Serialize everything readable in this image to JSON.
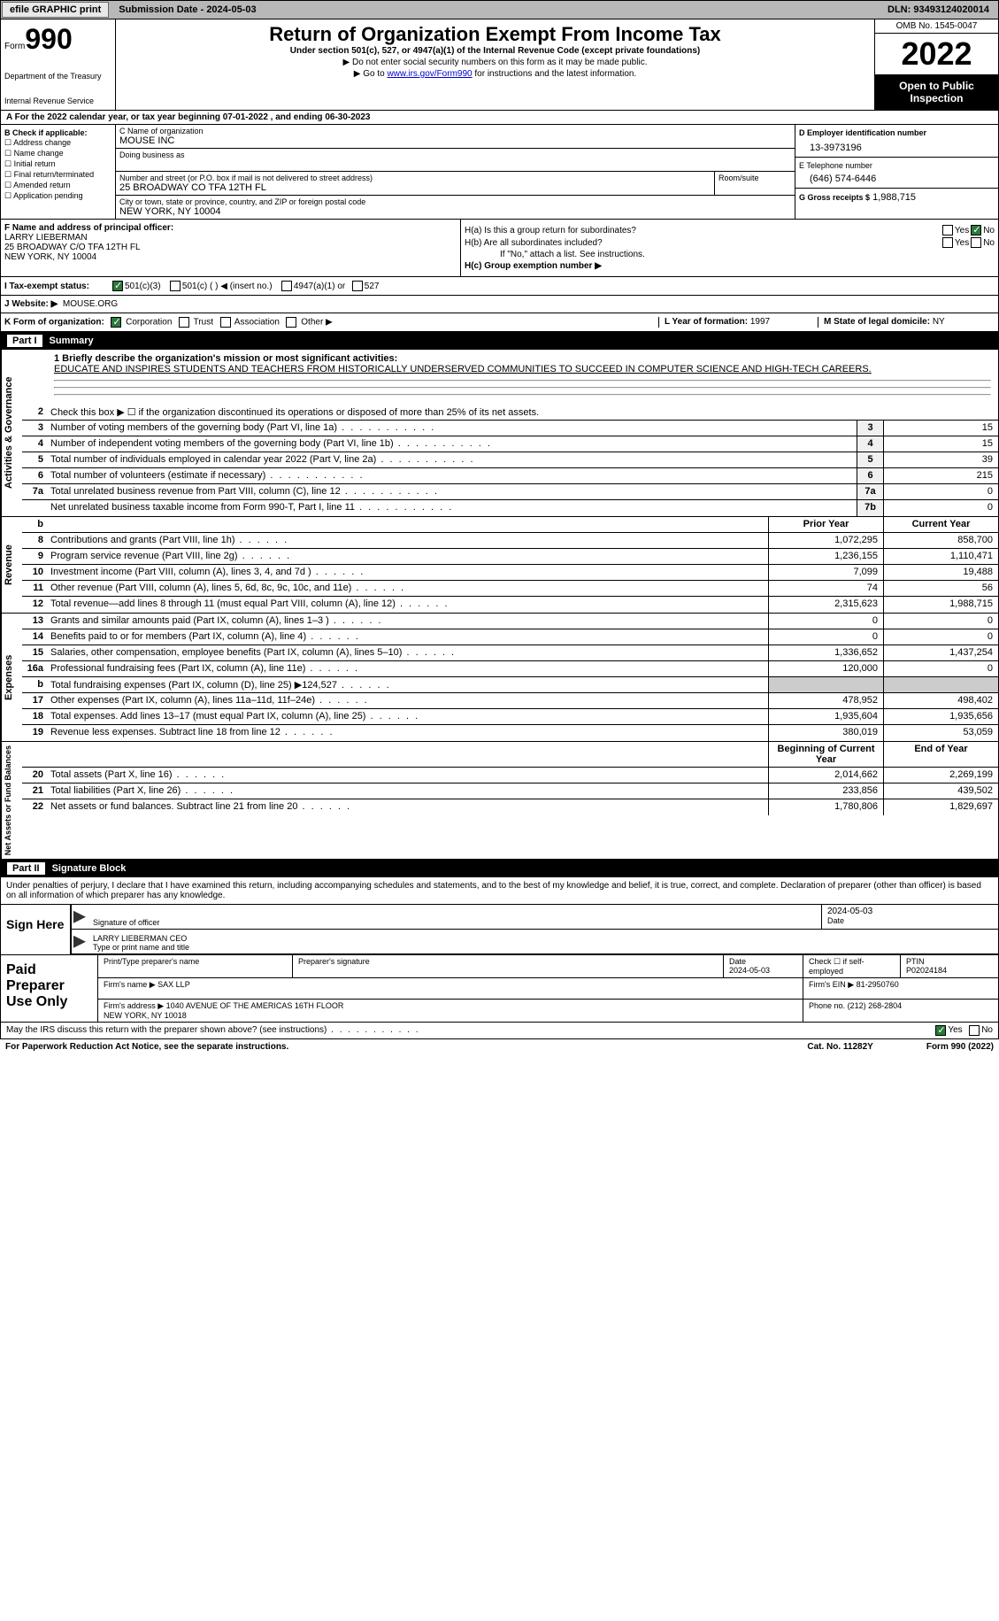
{
  "topbar": {
    "efile": "efile GRAPHIC print",
    "sub_label": "Submission Date - 2024-05-03",
    "dln": "DLN: 93493124020014"
  },
  "header": {
    "form_word": "Form",
    "form_num": "990",
    "title": "Return of Organization Exempt From Income Tax",
    "subtitle": "Under section 501(c), 527, or 4947(a)(1) of the Internal Revenue Code (except private foundations)",
    "note1": "▶ Do not enter social security numbers on this form as it may be made public.",
    "note2_pre": "▶ Go to ",
    "note2_link": "www.irs.gov/Form990",
    "note2_post": " for instructions and the latest information.",
    "dept": "Department of the Treasury",
    "irs": "Internal Revenue Service",
    "omb": "OMB No. 1545-0047",
    "year": "2022",
    "open": "Open to Public Inspection"
  },
  "rowA": "A For the 2022 calendar year, or tax year beginning 07-01-2022    , and ending 06-30-2023",
  "boxB": {
    "hdr": "B Check if applicable:",
    "items": [
      "Address change",
      "Name change",
      "Initial return",
      "Final return/terminated",
      "Amended return",
      "Application pending"
    ]
  },
  "boxC": {
    "name_lbl": "C Name of organization",
    "name": "MOUSE INC",
    "dba_lbl": "Doing business as",
    "street_lbl": "Number and street (or P.O. box if mail is not delivered to street address)",
    "street": "25 BROADWAY CO TFA 12TH FL",
    "room_lbl": "Room/suite",
    "city_lbl": "City or town, state or province, country, and ZIP or foreign postal code",
    "city": "NEW YORK, NY  10004"
  },
  "boxD": {
    "ein_lbl": "D Employer identification number",
    "ein": "13-3973196",
    "phone_lbl": "E Telephone number",
    "phone": "(646) 574-6446",
    "gross_lbl": "G Gross receipts $",
    "gross": "1,988,715"
  },
  "boxF": {
    "lbl": "F Name and address of principal officer:",
    "name": "LARRY LIEBERMAN",
    "addr1": "25 BROADWAY C/O TFA 12TH FL",
    "addr2": "NEW YORK, NY  10004"
  },
  "boxH": {
    "a_lbl": "H(a)  Is this a group return for subordinates?",
    "b_lbl": "H(b)  Are all subordinates included?",
    "b_note": "If \"No,\" attach a list. See instructions.",
    "c_lbl": "H(c)  Group exemption number ▶",
    "yes": "Yes",
    "no": "No"
  },
  "rowI": {
    "lbl": "I  Tax-exempt status:",
    "o1": "501(c)(3)",
    "o2": "501(c) (  ) ◀ (insert no.)",
    "o3": "4947(a)(1) or",
    "o4": "527"
  },
  "rowJ": {
    "lbl": "J  Website: ▶",
    "val": "MOUSE.ORG"
  },
  "rowK": {
    "lbl": "K Form of organization:",
    "o1": "Corporation",
    "o2": "Trust",
    "o3": "Association",
    "o4": "Other ▶",
    "l_lbl": "L Year of formation:",
    "l_val": "1997",
    "m_lbl": "M State of legal domicile:",
    "m_val": "NY"
  },
  "part1": {
    "label": "Part I",
    "title": "Summary"
  },
  "summary": {
    "mission_lbl": "1  Briefly describe the organization's mission or most significant activities:",
    "mission": "EDUCATE AND INSPIRES STUDENTS AND TEACHERS FROM HISTORICALLY UNDERSERVED COMMUNITIES TO SUCCEED IN COMPUTER SCIENCE AND HIGH-TECH CAREERS.",
    "line2": "Check this box ▶ ☐ if the organization discontinued its operations or disposed of more than 25% of its net assets.",
    "prior_hdr": "Prior Year",
    "curr_hdr": "Current Year",
    "begin_hdr": "Beginning of Current Year",
    "end_hdr": "End of Year",
    "rows_gov": [
      {
        "n": "3",
        "d": "Number of voting members of the governing body (Part VI, line 1a)",
        "b": "3",
        "v": "15"
      },
      {
        "n": "4",
        "d": "Number of independent voting members of the governing body (Part VI, line 1b)",
        "b": "4",
        "v": "15"
      },
      {
        "n": "5",
        "d": "Total number of individuals employed in calendar year 2022 (Part V, line 2a)",
        "b": "5",
        "v": "39"
      },
      {
        "n": "6",
        "d": "Total number of volunteers (estimate if necessary)",
        "b": "6",
        "v": "215"
      },
      {
        "n": "7a",
        "d": "Total unrelated business revenue from Part VIII, column (C), line 12",
        "b": "7a",
        "v": "0"
      },
      {
        "n": "",
        "d": "Net unrelated business taxable income from Form 990-T, Part I, line 11",
        "b": "7b",
        "v": "0"
      }
    ],
    "rows_rev": [
      {
        "n": "8",
        "d": "Contributions and grants (Part VIII, line 1h)",
        "p": "1,072,295",
        "c": "858,700"
      },
      {
        "n": "9",
        "d": "Program service revenue (Part VIII, line 2g)",
        "p": "1,236,155",
        "c": "1,110,471"
      },
      {
        "n": "10",
        "d": "Investment income (Part VIII, column (A), lines 3, 4, and 7d )",
        "p": "7,099",
        "c": "19,488"
      },
      {
        "n": "11",
        "d": "Other revenue (Part VIII, column (A), lines 5, 6d, 8c, 9c, 10c, and 11e)",
        "p": "74",
        "c": "56"
      },
      {
        "n": "12",
        "d": "Total revenue—add lines 8 through 11 (must equal Part VIII, column (A), line 12)",
        "p": "2,315,623",
        "c": "1,988,715"
      }
    ],
    "rows_exp": [
      {
        "n": "13",
        "d": "Grants and similar amounts paid (Part IX, column (A), lines 1–3 )",
        "p": "0",
        "c": "0"
      },
      {
        "n": "14",
        "d": "Benefits paid to or for members (Part IX, column (A), line 4)",
        "p": "0",
        "c": "0"
      },
      {
        "n": "15",
        "d": "Salaries, other compensation, employee benefits (Part IX, column (A), lines 5–10)",
        "p": "1,336,652",
        "c": "1,437,254"
      },
      {
        "n": "16a",
        "d": "Professional fundraising fees (Part IX, column (A), line 11e)",
        "p": "120,000",
        "c": "0"
      },
      {
        "n": "b",
        "d": "Total fundraising expenses (Part IX, column (D), line 25) ▶124,527",
        "p": "",
        "c": "",
        "shade": true
      },
      {
        "n": "17",
        "d": "Other expenses (Part IX, column (A), lines 11a–11d, 11f–24e)",
        "p": "478,952",
        "c": "498,402"
      },
      {
        "n": "18",
        "d": "Total expenses. Add lines 13–17 (must equal Part IX, column (A), line 25)",
        "p": "1,935,604",
        "c": "1,935,656"
      },
      {
        "n": "19",
        "d": "Revenue less expenses. Subtract line 18 from line 12",
        "p": "380,019",
        "c": "53,059"
      }
    ],
    "rows_net": [
      {
        "n": "20",
        "d": "Total assets (Part X, line 16)",
        "p": "2,014,662",
        "c": "2,269,199"
      },
      {
        "n": "21",
        "d": "Total liabilities (Part X, line 26)",
        "p": "233,856",
        "c": "439,502"
      },
      {
        "n": "22",
        "d": "Net assets or fund balances. Subtract line 21 from line 20",
        "p": "1,780,806",
        "c": "1,829,697"
      }
    ]
  },
  "part2": {
    "label": "Part II",
    "title": "Signature Block"
  },
  "sig": {
    "intro": "Under penalties of perjury, I declare that I have examined this return, including accompanying schedules and statements, and to the best of my knowledge and belief, it is true, correct, and complete. Declaration of preparer (other than officer) is based on all information of which preparer has any knowledge.",
    "here": "Sign Here",
    "sig_lbl": "Signature of officer",
    "date_lbl": "Date",
    "date_val": "2024-05-03",
    "name": "LARRY LIEBERMAN  CEO",
    "name_lbl": "Type or print name and title"
  },
  "prep": {
    "label": "Paid Preparer Use Only",
    "pt_name_lbl": "Print/Type preparer's name",
    "sig_lbl": "Preparer's signature",
    "date_lbl": "Date",
    "date": "2024-05-03",
    "self_lbl": "Check ☐ if self-employed",
    "ptin_lbl": "PTIN",
    "ptin": "P02024184",
    "firm_name_lbl": "Firm's name   ▶",
    "firm_name": "SAX LLP",
    "firm_ein_lbl": "Firm's EIN ▶",
    "firm_ein": "81-2950760",
    "firm_addr_lbl": "Firm's address ▶",
    "firm_addr": "1040 AVENUE OF THE AMERICAS 16TH FLOOR\nNEW YORK, NY  10018",
    "phone_lbl": "Phone no.",
    "phone": "(212) 268-2804"
  },
  "footer": {
    "discuss": "May the IRS discuss this return with the preparer shown above? (see instructions)",
    "yes": "Yes",
    "no": "No",
    "pra": "For Paperwork Reduction Act Notice, see the separate instructions.",
    "cat": "Cat. No. 11282Y",
    "form": "Form 990 (2022)"
  },
  "vtabs": {
    "gov": "Activities & Governance",
    "rev": "Revenue",
    "exp": "Expenses",
    "net": "Net Assets or Fund Balances"
  }
}
